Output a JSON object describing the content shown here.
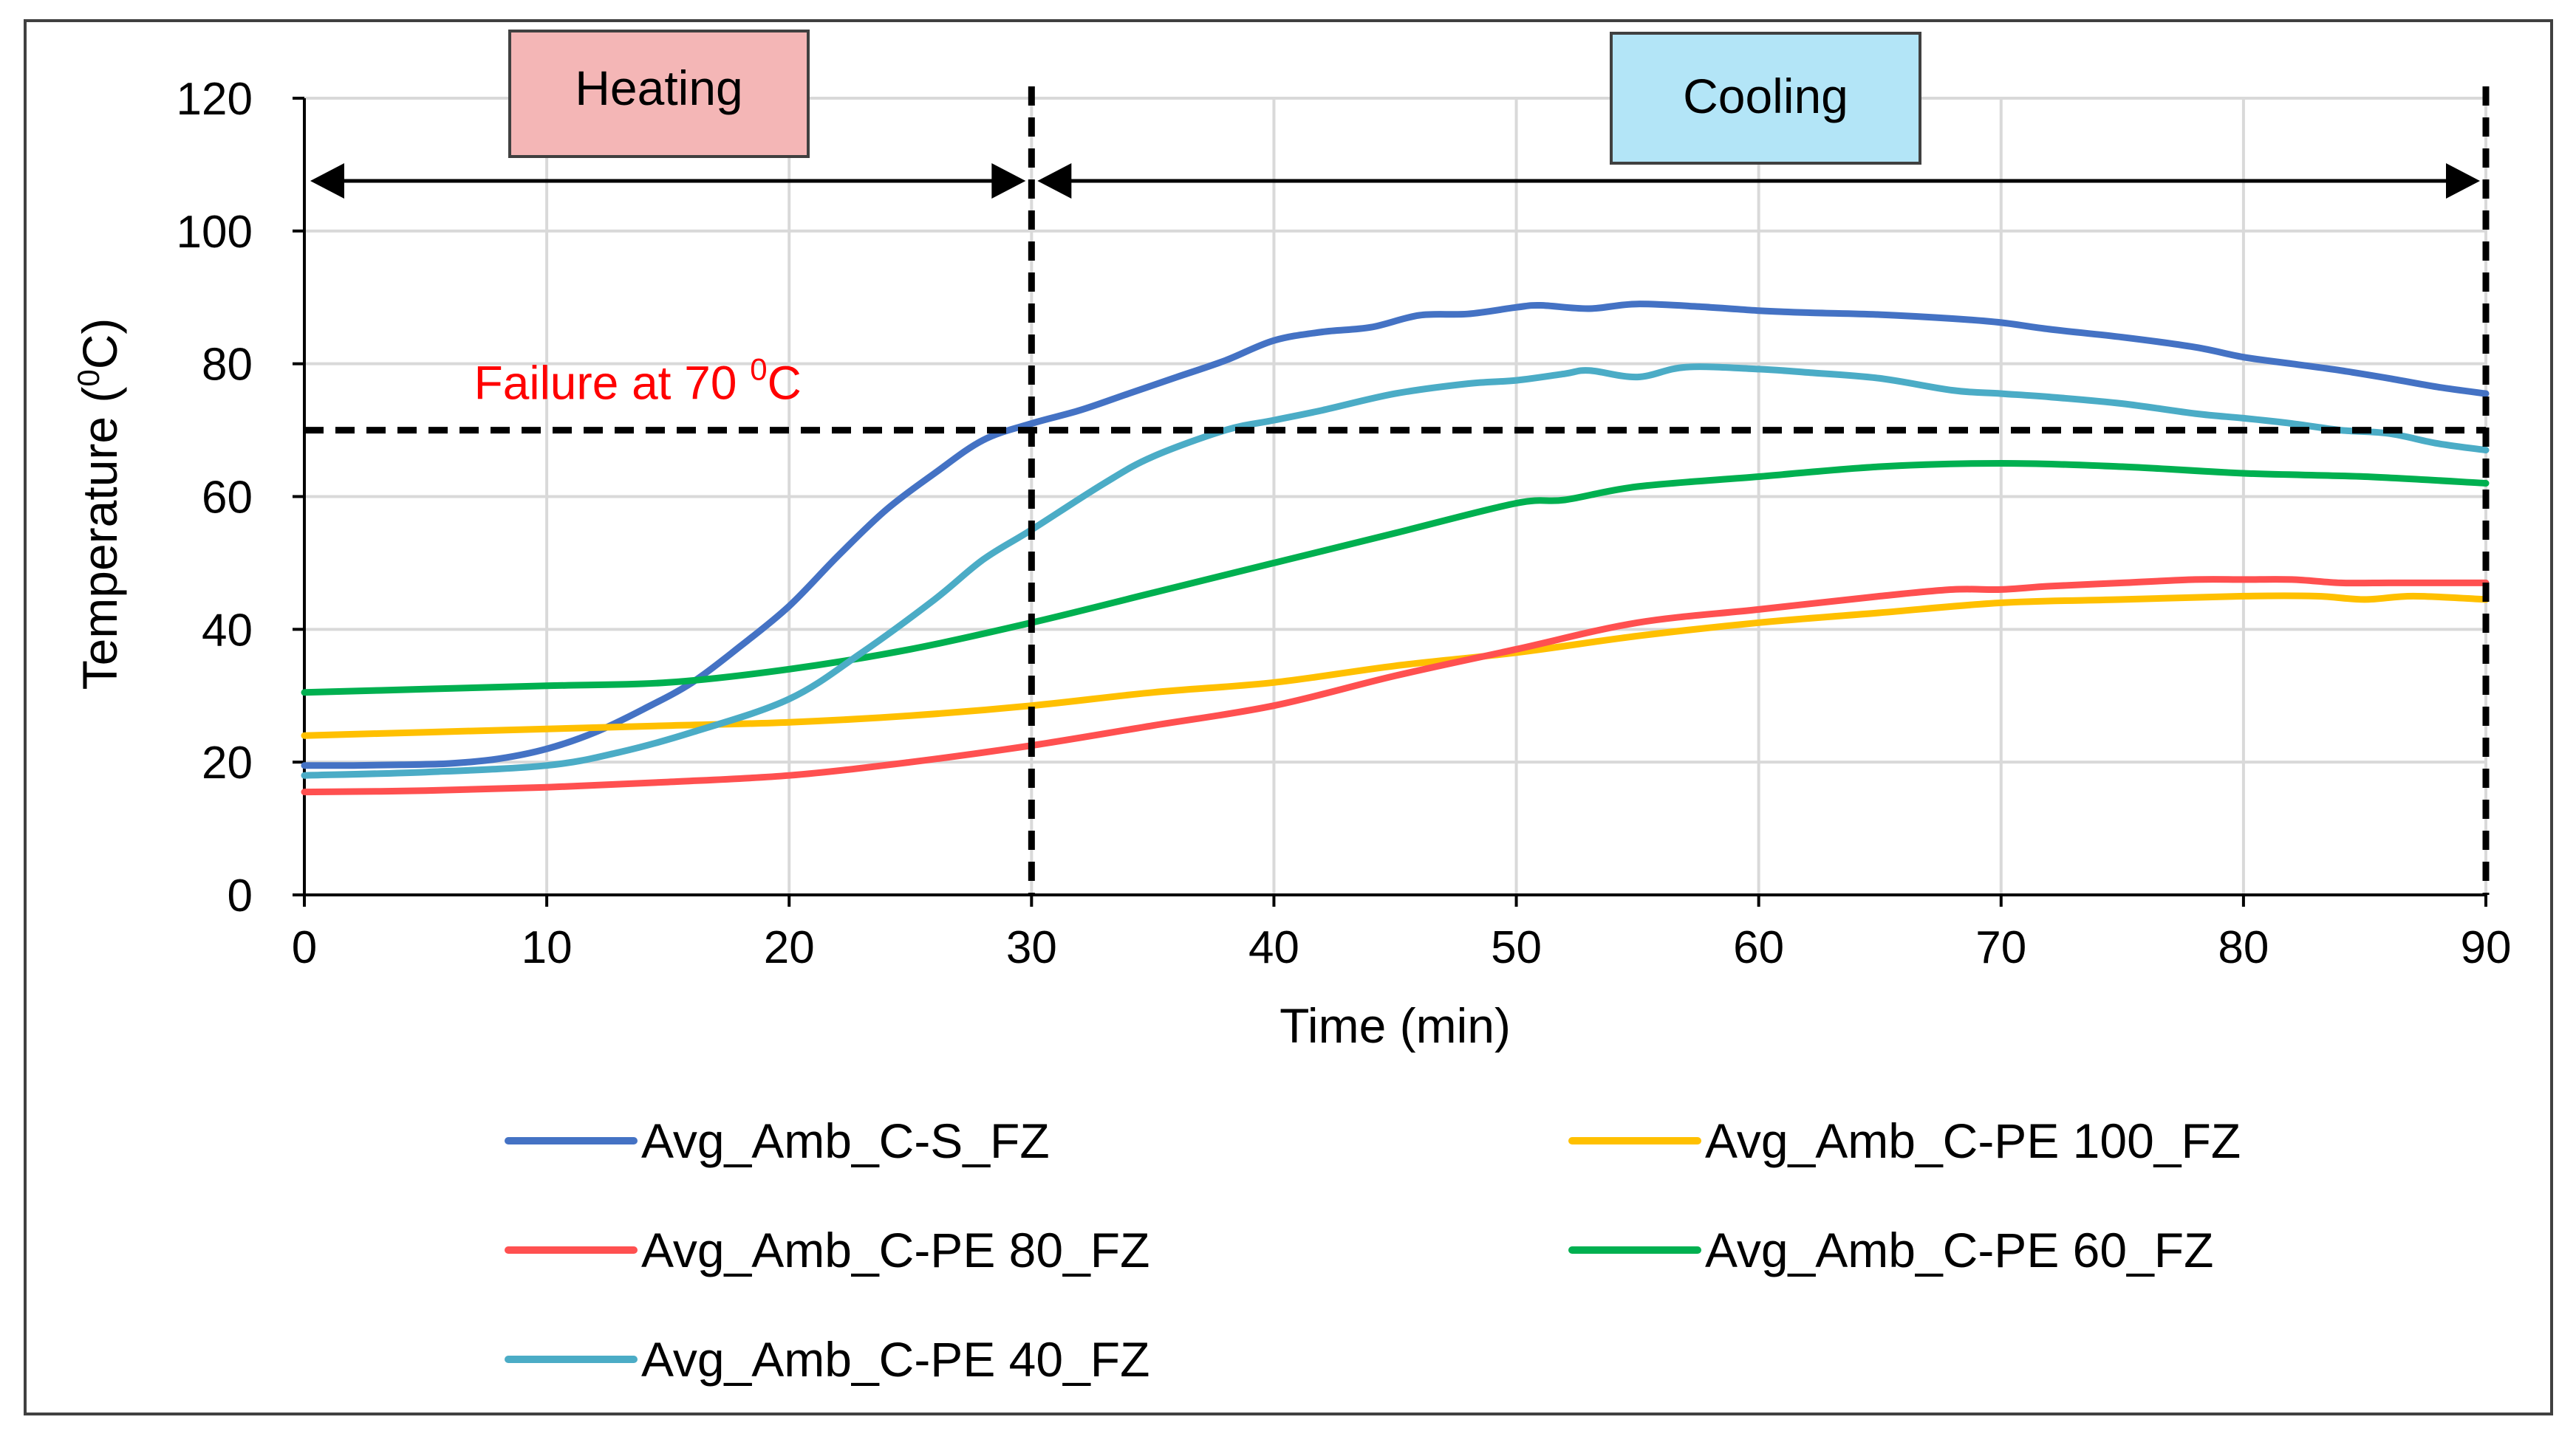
{
  "chart_data": {
    "type": "line",
    "title": "",
    "xlabel": "Time (min)",
    "ylabel": "Temperature (",
    "ylabel_sup": "0",
    "ylabel_tail": "C)",
    "xlim": [
      0,
      90
    ],
    "ylim": [
      0,
      120
    ],
    "xticks": [
      0,
      10,
      20,
      30,
      40,
      50,
      60,
      70,
      80,
      90
    ],
    "yticks": [
      0,
      20,
      40,
      60,
      80,
      100,
      120
    ],
    "grid": true,
    "legend_position": "bottom",
    "series": [
      {
        "name": "Avg_Amb_C-S_FZ",
        "color": "#4472C4",
        "x": [
          0,
          2,
          4,
          6,
          8,
          10,
          12,
          14,
          16,
          18,
          20,
          22,
          24,
          26,
          28,
          30,
          32,
          34,
          36,
          38,
          40,
          42,
          44,
          46,
          48,
          50,
          51,
          53,
          55,
          58,
          60,
          62,
          65,
          68,
          70,
          72,
          75,
          78,
          80,
          82,
          84,
          86,
          88,
          90
        ],
        "y": [
          19.5,
          19.5,
          19.6,
          19.8,
          20.5,
          22,
          24.5,
          28,
          32,
          37.5,
          43.5,
          51,
          58,
          63.5,
          68.5,
          71,
          73,
          75.5,
          78,
          80.5,
          83.5,
          84.8,
          85.5,
          87.3,
          87.5,
          88.5,
          88.8,
          88.3,
          89,
          88.5,
          88,
          87.7,
          87.4,
          86.8,
          86.2,
          85.2,
          84,
          82.5,
          81,
          80,
          79,
          77.8,
          76.5,
          75.5
        ]
      },
      {
        "name": "Avg_Amb_C-PE 100_FZ",
        "color": "#FFC000",
        "x": [
          0,
          5,
          10,
          15,
          20,
          25,
          30,
          35,
          40,
          45,
          50,
          55,
          60,
          65,
          70,
          75,
          80,
          83,
          85,
          87,
          90
        ],
        "y": [
          24,
          24.5,
          25,
          25.5,
          26,
          27,
          28.5,
          30.5,
          32,
          34.5,
          36.5,
          39,
          41,
          42.5,
          44,
          44.5,
          45,
          45,
          44.5,
          45,
          44.5
        ]
      },
      {
        "name": "Avg_Amb_C-PE 80_FZ",
        "color": "#FF5050",
        "x": [
          0,
          5,
          10,
          15,
          20,
          25,
          30,
          35,
          40,
          45,
          50,
          55,
          60,
          65,
          68,
          70,
          72,
          75,
          78,
          80,
          82,
          84,
          86,
          88,
          90
        ],
        "y": [
          15.5,
          15.7,
          16.2,
          17,
          18,
          20,
          22.5,
          25.5,
          28.5,
          33,
          37,
          41,
          43,
          45,
          46,
          46,
          46.5,
          47,
          47.5,
          47.5,
          47.5,
          47,
          47,
          47,
          47
        ]
      },
      {
        "name": "Avg_Amb_C-PE 60_FZ",
        "color": "#00B050",
        "x": [
          0,
          5,
          10,
          15,
          20,
          25,
          30,
          35,
          40,
          45,
          50,
          52,
          55,
          60,
          65,
          70,
          75,
          80,
          85,
          90
        ],
        "y": [
          30.5,
          31,
          31.5,
          32,
          34,
          37,
          41,
          45.5,
          50,
          54.5,
          59,
          59.5,
          61.5,
          63,
          64.5,
          65,
          64.5,
          63.5,
          63,
          62
        ]
      },
      {
        "name": "Avg_Amb_C-PE 40_FZ",
        "color": "#4BACC6",
        "x": [
          0,
          5,
          10,
          13,
          16,
          20,
          23,
          26,
          28,
          30,
          33,
          35,
          38,
          40,
          42,
          45,
          48,
          50,
          52,
          53,
          55,
          57,
          60,
          62,
          65,
          68,
          70,
          72,
          75,
          78,
          80,
          82,
          84,
          86,
          88,
          90
        ],
        "y": [
          18,
          18.5,
          19.5,
          21.5,
          24.5,
          29.5,
          36.5,
          44.5,
          50.5,
          55,
          62,
          66,
          70,
          71.5,
          73,
          75.5,
          77,
          77.5,
          78.5,
          79,
          78,
          79.5,
          79.2,
          78.7,
          77.8,
          76,
          75.5,
          75,
          74,
          72.5,
          71.8,
          71,
          70,
          69.5,
          68,
          67
        ]
      }
    ],
    "reference_lines": [
      {
        "axis": "y",
        "value": 70,
        "style": "dashed",
        "label": "Failure at 70 ",
        "label_sup": "0",
        "label_tail": "C",
        "label_color": "#FF0000"
      },
      {
        "axis": "x",
        "value": 30,
        "style": "dashed"
      },
      {
        "axis": "x",
        "value": 90,
        "style": "dashed"
      }
    ],
    "phases": [
      {
        "label": "Heating",
        "from": 0,
        "to": 30,
        "color": "#F4B6B6"
      },
      {
        "label": "Cooling",
        "from": 30,
        "to": 90,
        "color": "#B3E5F7"
      }
    ]
  }
}
